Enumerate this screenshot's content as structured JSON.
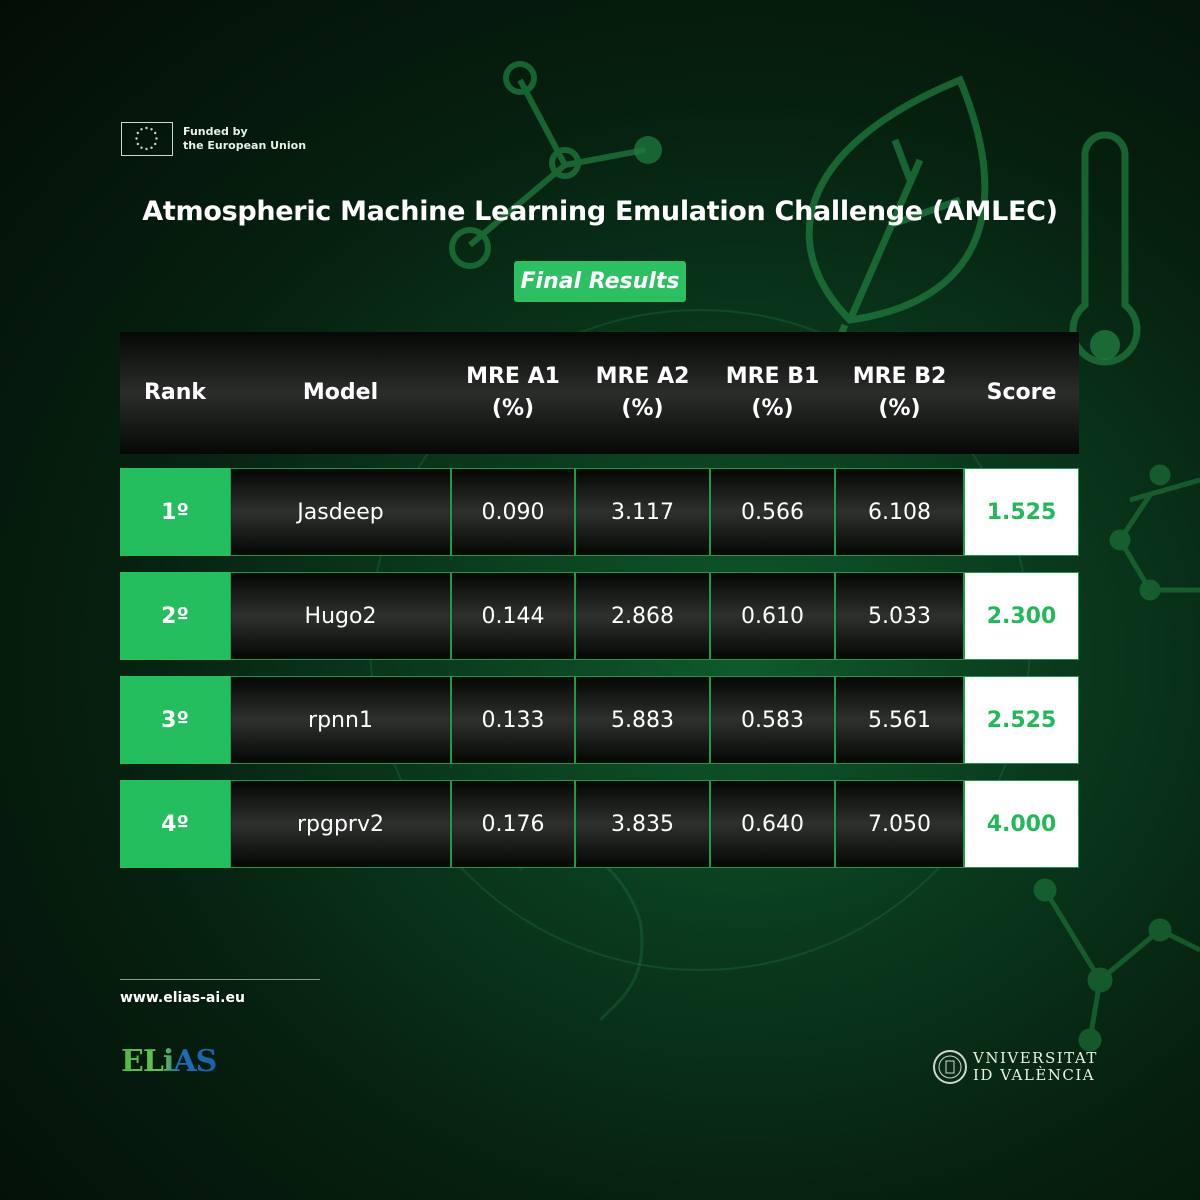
{
  "eu": {
    "line1": "Funded by",
    "line2": "the European Union",
    "flag_icon": "eu-flag-icon"
  },
  "title": "Atmospheric Machine Learning Emulation Challenge (AMLEC)",
  "badge": "Final Results",
  "table": {
    "headers": {
      "rank": "Rank",
      "model": "Model",
      "a1_line1": "MRE A1",
      "a1_line2": "(%)",
      "a2_line1": "MRE A2",
      "a2_line2": "(%)",
      "b1_line1": "MRE B1",
      "b1_line2": "(%)",
      "b2_line1": "MRE B2",
      "b2_line2": "(%)",
      "score": "Score"
    },
    "rows": [
      {
        "rank": "1º",
        "model": "Jasdeep",
        "a1": "0.090",
        "a2": "3.117",
        "b1": "0.566",
        "b2": "6.108",
        "score": "1.525"
      },
      {
        "rank": "2º",
        "model": "Hugo2",
        "a1": "0.144",
        "a2": "2.868",
        "b1": "0.610",
        "b2": "5.033",
        "score": "2.300"
      },
      {
        "rank": "3º",
        "model": "rpnn1",
        "a1": "0.133",
        "a2": "5.883",
        "b1": "0.583",
        "b2": "5.561",
        "score": "2.525"
      },
      {
        "rank": "4º",
        "model": "rpgprv2",
        "a1": "0.176",
        "a2": "3.835",
        "b1": "0.640",
        "b2": "7.050",
        "score": "4.000"
      }
    ]
  },
  "footer": {
    "url": "www.elias-ai.eu"
  },
  "logos": {
    "elias": "ELiAS",
    "uv_line1": "VNIVERSITAT",
    "uv_line2": "ID VALÈNCIA"
  },
  "colors": {
    "accent_green": "#25be5e",
    "score_text": "#23b85a",
    "bg_dark": "#06200f"
  }
}
